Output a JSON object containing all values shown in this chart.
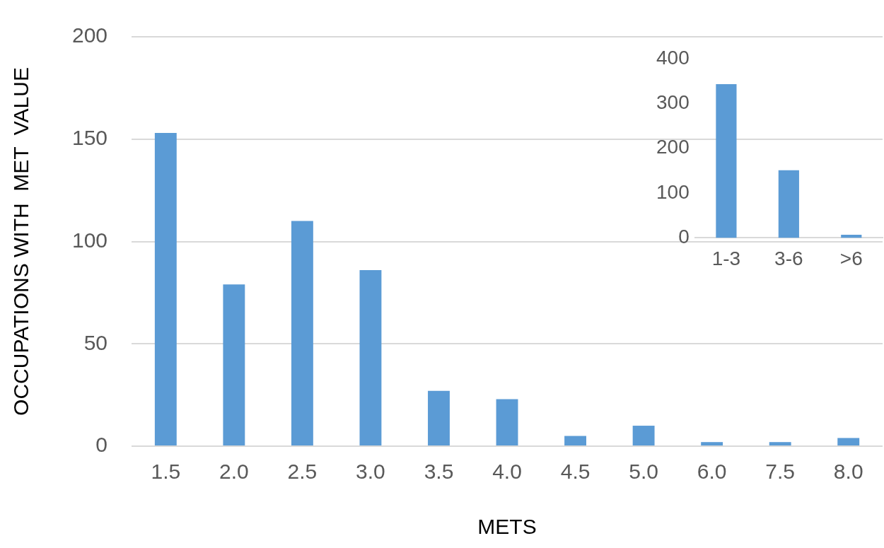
{
  "chart_data": [
    {
      "type": "bar",
      "xlabel": "METS",
      "ylabel": "OCCUPATIONS WITH  MET  VALUE",
      "categories": [
        "1.5",
        "2.0",
        "2.5",
        "3.0",
        "3.5",
        "4.0",
        "4.5",
        "5.0",
        "6.0",
        "7.5",
        "8.0"
      ],
      "values": [
        153,
        79,
        110,
        86,
        27,
        23,
        5,
        10,
        2,
        2,
        4
      ],
      "color": "#5b9bd5",
      "ylim": [
        0,
        200
      ],
      "yticks": [
        0,
        50,
        100,
        150,
        200
      ],
      "grid": "y",
      "legend": false
    },
    {
      "type": "bar",
      "categories": [
        "1-3",
        "3-6",
        ">6"
      ],
      "values": [
        343,
        151,
        7
      ],
      "color": "#5b9bd5",
      "ylim": [
        0,
        400
      ],
      "yticks": [
        0,
        100,
        200,
        300,
        400
      ],
      "legend": false
    }
  ]
}
